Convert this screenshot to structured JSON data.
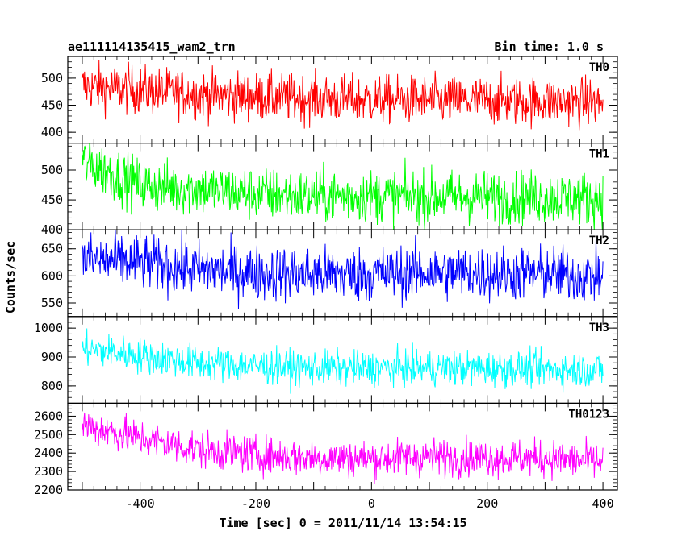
{
  "header": {
    "title": "ae111114135415_wam2_trn",
    "bin_time": "Bin time: 1.0 s"
  },
  "chart_data": {
    "type": "line",
    "title": "ae111114135415_wam2_trn",
    "xlabel": "Time [sec] 0 = 2011/11/14 13:54:15",
    "ylabel": "Counts/sec",
    "xlim": [
      -525,
      425
    ],
    "x_ticks": [
      -400,
      -200,
      0,
      200,
      400
    ],
    "x_range": [
      -500,
      400
    ],
    "bin_time_s": 1.0,
    "grid": false,
    "series": [
      {
        "name": "TH0",
        "color": "#ff0000",
        "ylim": [
          380,
          540
        ],
        "y_ticks": [
          400,
          450,
          500
        ],
        "x": [
          -500,
          -400,
          -300,
          -200,
          -100,
          0,
          100,
          200,
          300,
          400
        ],
        "values": [
          485,
          478,
          470,
          465,
          462,
          460,
          459,
          458,
          457,
          455
        ]
      },
      {
        "name": "TH1",
        "color": "#00ff00",
        "ylim": [
          400,
          545
        ],
        "y_ticks": [
          400,
          450,
          500
        ],
        "x": [
          -500,
          -400,
          -300,
          -200,
          -100,
          0,
          100,
          200,
          300,
          400
        ],
        "values": [
          515,
          475,
          468,
          460,
          456,
          457,
          455,
          455,
          454,
          452
        ]
      },
      {
        "name": "TH2",
        "color": "#0000ff",
        "ylim": [
          525,
          685
        ],
        "y_ticks": [
          550,
          600,
          650
        ],
        "x": [
          -500,
          -400,
          -300,
          -200,
          -100,
          0,
          100,
          200,
          300,
          400
        ],
        "values": [
          630,
          625,
          612,
          605,
          603,
          604,
          606,
          605,
          604,
          600
        ]
      },
      {
        "name": "TH3",
        "color": "#00ffff",
        "ylim": [
          740,
          1040
        ],
        "y_ticks": [
          800,
          900,
          1000
        ],
        "x": [
          -500,
          -400,
          -300,
          -200,
          -100,
          0,
          100,
          200,
          300,
          400
        ],
        "values": [
          930,
          905,
          880,
          868,
          862,
          860,
          862,
          860,
          858,
          855
        ]
      },
      {
        "name": "TH0123",
        "color": "#ff00ff",
        "ylim": [
          2200,
          2670
        ],
        "y_ticks": [
          2200,
          2300,
          2400,
          2500,
          2600
        ],
        "x": [
          -500,
          -400,
          -300,
          -200,
          -100,
          0,
          100,
          200,
          300,
          400
        ],
        "values": [
          2555,
          2480,
          2420,
          2390,
          2375,
          2370,
          2380,
          2375,
          2370,
          2350
        ]
      }
    ]
  }
}
